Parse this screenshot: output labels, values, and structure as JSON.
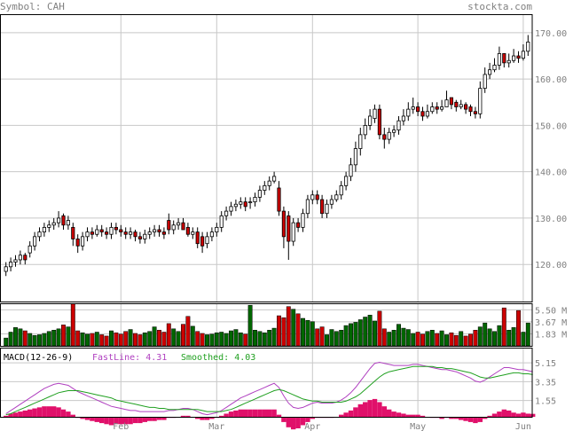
{
  "header": {
    "symbol_text": "Symbol: CAH",
    "site": "stockta.com"
  },
  "colors": {
    "up": "#ffffff",
    "down": "#cc0000",
    "vol_up": "#006600",
    "vol_down": "#cc0000",
    "fast": "#b040c0",
    "smooth": "#20a020",
    "hist": "#e0106a",
    "grid": "#c8c8c8"
  },
  "chart_data": [
    {
      "type": "candlestick",
      "title": "",
      "y_ticks": [
        120,
        130,
        140,
        150,
        160,
        170
      ],
      "ylim": [
        112,
        174
      ],
      "x_ticks": [
        "Feb",
        "Mar",
        "Apr",
        "May",
        "Jun"
      ],
      "x_tick_positions": [
        24,
        44,
        64,
        86,
        108
      ],
      "close": [
        119.5,
        120.5,
        121,
        122,
        121,
        124,
        126,
        127,
        128,
        128.5,
        129,
        130,
        128.5,
        129.5,
        125.5,
        124,
        126,
        127,
        126.5,
        127.5,
        127,
        126.5,
        128,
        127.5,
        127,
        126.5,
        127,
        126,
        125.5,
        126.5,
        127,
        127.5,
        127,
        126.5,
        127.5,
        128.5,
        129,
        127.5,
        126.5,
        127,
        124.5,
        124,
        126,
        127,
        128,
        130.5,
        131.5,
        132.5,
        133,
        133.5,
        132.5,
        133.5,
        134.5,
        136,
        137,
        138,
        139,
        131.5,
        126,
        125,
        129,
        128,
        131,
        134,
        135,
        134,
        131,
        133,
        134,
        135,
        137,
        139,
        141.5,
        145,
        148,
        150,
        152,
        153.5,
        148,
        147,
        148.5,
        149,
        151,
        152,
        153.5,
        154,
        153,
        152,
        153,
        154,
        153.5,
        154,
        155.5,
        154.5,
        154,
        154.5,
        153.5,
        153,
        152.5,
        158,
        161,
        162,
        163,
        165.5,
        163.5,
        164,
        165,
        164.5,
        166,
        168
      ],
      "open": [
        118.5,
        119.5,
        120.5,
        121,
        122,
        122.5,
        124,
        126,
        127,
        128,
        128.5,
        129,
        130.5,
        128.5,
        128,
        125.5,
        124,
        126,
        127,
        126.5,
        127.5,
        127,
        126.5,
        128,
        127.5,
        127,
        126.5,
        127,
        126,
        125.5,
        126.5,
        127,
        127.5,
        127,
        129.5,
        127.5,
        128.5,
        129,
        128,
        126.5,
        127,
        126,
        124.5,
        126,
        127,
        128,
        130.5,
        131.5,
        132.5,
        133,
        133.5,
        133.5,
        133.5,
        134.5,
        136,
        137,
        138,
        136.5,
        131.5,
        130.5,
        125,
        129,
        128,
        131,
        134,
        135,
        134,
        131,
        133,
        134,
        135,
        137,
        139,
        141.5,
        145,
        148,
        150,
        151.5,
        153.5,
        148,
        147,
        148.5,
        149,
        151,
        152,
        153.5,
        154,
        153,
        152,
        153,
        154,
        153.5,
        154,
        156,
        155,
        154,
        154.5,
        154,
        153,
        152.5,
        158,
        161,
        162,
        163,
        165.5,
        163.5,
        164,
        165,
        164.5,
        166
      ],
      "high": [
        120.5,
        121.5,
        122,
        123,
        122.5,
        125,
        127,
        128,
        129,
        129.5,
        130,
        131.5,
        131,
        130.5,
        129,
        126.5,
        127,
        128,
        128,
        128.5,
        128.5,
        128,
        129,
        129,
        128.5,
        128,
        128,
        127.5,
        127,
        127.5,
        128,
        128.5,
        128.5,
        128,
        131,
        129.5,
        130,
        130,
        129,
        128,
        128,
        127,
        127,
        128,
        129,
        131.5,
        132.5,
        133.5,
        134,
        134.5,
        134.5,
        134.5,
        135.5,
        137,
        138,
        139,
        140,
        138,
        132.5,
        131.5,
        130,
        130,
        132,
        135,
        136,
        136,
        135,
        134,
        135,
        136,
        138,
        140,
        143,
        146.5,
        149.5,
        151.5,
        153.5,
        154.5,
        154.5,
        149.5,
        149.5,
        150,
        152,
        153.5,
        155,
        156,
        155,
        154,
        154.5,
        155,
        155,
        155.5,
        157.5,
        156,
        155.5,
        155.5,
        155,
        154.5,
        154,
        159.5,
        162.5,
        163.5,
        164.5,
        167,
        165.5,
        165.5,
        166.5,
        166,
        167.5,
        169.5
      ],
      "low": [
        117.5,
        118.5,
        119.5,
        120,
        120,
        121.5,
        123,
        125,
        126,
        127,
        127.5,
        128,
        127.5,
        127.5,
        124,
        122.5,
        123,
        125,
        125.5,
        126,
        126,
        125.5,
        125.5,
        126.5,
        126,
        125.5,
        125.5,
        125,
        124.5,
        124.5,
        125.5,
        126,
        126,
        125.5,
        126.5,
        126.5,
        127.5,
        128,
        126,
        125.5,
        123.5,
        122.5,
        123.5,
        125,
        126,
        127,
        129.5,
        130.5,
        131.5,
        132,
        131.5,
        132,
        132.5,
        133.5,
        135,
        136,
        137.5,
        130.5,
        123.5,
        121,
        124,
        127,
        127,
        130,
        133,
        133,
        130,
        130,
        132,
        133.5,
        134,
        136,
        138,
        140,
        143.5,
        147,
        149,
        150.5,
        147,
        145,
        146,
        147.5,
        148,
        150,
        151,
        152.5,
        152,
        151,
        151.5,
        152.5,
        152.5,
        153,
        154,
        153.5,
        153,
        153.5,
        152.5,
        152,
        151.5,
        151.5,
        157,
        160,
        161.5,
        162,
        162.5,
        162.5,
        163.5,
        163.5,
        164,
        165
      ]
    },
    {
      "type": "bar",
      "title": "",
      "y_ticks": [
        "5.50 M",
        "3.67 M",
        "1.83 M"
      ],
      "y_tick_values": [
        5.5,
        3.67,
        1.83
      ],
      "ylim": [
        0,
        6.5
      ],
      "values": [
        1.2,
        2.1,
        2.8,
        2.6,
        2.3,
        1.9,
        1.6,
        1.7,
        1.9,
        2.2,
        2.4,
        2.6,
        3.2,
        2.9,
        6.4,
        2.3,
        2.0,
        1.8,
        1.9,
        2.1,
        1.7,
        1.5,
        2.3,
        2.0,
        1.8,
        2.2,
        2.5,
        1.9,
        1.7,
        2.0,
        2.2,
        2.9,
        2.4,
        2.1,
        3.4,
        2.6,
        2.2,
        3.3,
        4.5,
        3.0,
        2.2,
        1.9,
        1.7,
        1.8,
        2.0,
        2.1,
        1.9,
        2.3,
        2.5,
        2.0,
        1.8,
        6.2,
        2.4,
        2.2,
        2.0,
        2.4,
        2.7,
        4.6,
        4.3,
        6.0,
        5.6,
        4.9,
        4.2,
        3.9,
        3.7,
        2.6,
        2.9,
        1.7,
        2.5,
        2.2,
        2.4,
        3.1,
        3.4,
        3.6,
        4.0,
        4.4,
        4.7,
        3.8,
        5.3,
        2.6,
        2.1,
        2.4,
        3.3,
        2.7,
        2.5,
        1.9,
        2.1,
        1.8,
        2.2,
        2.4,
        1.9,
        2.3,
        1.7,
        2.0,
        1.6,
        2.2,
        1.5,
        1.8,
        2.4,
        2.9,
        3.5,
        2.6,
        2.2,
        3.1,
        5.8,
        2.4,
        2.8,
        5.4,
        2.1,
        3.5
      ],
      "up_down": "follows candle direction"
    },
    {
      "type": "line",
      "title": "MACD(12-26-9)",
      "legend": [
        {
          "name": "FastLine",
          "value": "4.31"
        },
        {
          "name": "Smoothed",
          "value": "4.03"
        }
      ],
      "y_ticks": [
        "5.15",
        "3.35",
        "1.55"
      ],
      "y_tick_values": [
        5.15,
        3.35,
        1.55
      ],
      "ylim": [
        0,
        6.6
      ],
      "series": [
        {
          "name": "FastLine",
          "values": [
            0.3,
            0.6,
            0.9,
            1.2,
            1.5,
            1.8,
            2.1,
            2.4,
            2.7,
            2.9,
            3.1,
            3.2,
            3.1,
            3.0,
            2.7,
            2.4,
            2.2,
            2.0,
            1.8,
            1.6,
            1.4,
            1.2,
            1.0,
            0.9,
            0.8,
            0.7,
            0.6,
            0.6,
            0.5,
            0.5,
            0.5,
            0.5,
            0.5,
            0.5,
            0.6,
            0.6,
            0.7,
            0.8,
            0.8,
            0.7,
            0.5,
            0.3,
            0.2,
            0.3,
            0.4,
            0.6,
            0.9,
            1.2,
            1.5,
            1.8,
            2.0,
            2.2,
            2.4,
            2.6,
            2.8,
            3.0,
            3.2,
            2.8,
            2.0,
            1.3,
            0.9,
            0.8,
            0.9,
            1.1,
            1.3,
            1.4,
            1.3,
            1.3,
            1.3,
            1.4,
            1.6,
            1.9,
            2.3,
            2.8,
            3.4,
            4.0,
            4.6,
            5.1,
            5.2,
            5.1,
            5.0,
            4.9,
            4.9,
            4.9,
            4.9,
            5.0,
            5.0,
            4.9,
            4.8,
            4.7,
            4.6,
            4.5,
            4.5,
            4.4,
            4.3,
            4.1,
            3.9,
            3.7,
            3.4,
            3.3,
            3.5,
            3.8,
            4.1,
            4.4,
            4.7,
            4.7,
            4.6,
            4.5,
            4.5,
            4.4,
            4.31
          ]
        },
        {
          "name": "Smoothed",
          "values": [
            0.2,
            0.3,
            0.5,
            0.7,
            0.9,
            1.1,
            1.3,
            1.5,
            1.7,
            1.9,
            2.1,
            2.3,
            2.4,
            2.5,
            2.5,
            2.5,
            2.4,
            2.3,
            2.2,
            2.1,
            2.0,
            1.9,
            1.8,
            1.6,
            1.5,
            1.4,
            1.3,
            1.2,
            1.1,
            1.0,
            0.9,
            0.9,
            0.8,
            0.8,
            0.7,
            0.7,
            0.7,
            0.7,
            0.7,
            0.7,
            0.7,
            0.6,
            0.5,
            0.5,
            0.5,
            0.5,
            0.6,
            0.7,
            0.9,
            1.1,
            1.3,
            1.5,
            1.7,
            1.9,
            2.1,
            2.3,
            2.5,
            2.6,
            2.5,
            2.3,
            2.1,
            1.9,
            1.7,
            1.6,
            1.5,
            1.5,
            1.4,
            1.4,
            1.4,
            1.4,
            1.4,
            1.5,
            1.7,
            1.9,
            2.2,
            2.6,
            3.0,
            3.4,
            3.8,
            4.1,
            4.3,
            4.4,
            4.5,
            4.6,
            4.7,
            4.8,
            4.8,
            4.8,
            4.8,
            4.8,
            4.7,
            4.7,
            4.6,
            4.6,
            4.5,
            4.4,
            4.3,
            4.2,
            4.0,
            3.8,
            3.7,
            3.7,
            3.8,
            3.9,
            4.0,
            4.1,
            4.2,
            4.2,
            4.1,
            4.1,
            4.03
          ]
        }
      ]
    }
  ]
}
